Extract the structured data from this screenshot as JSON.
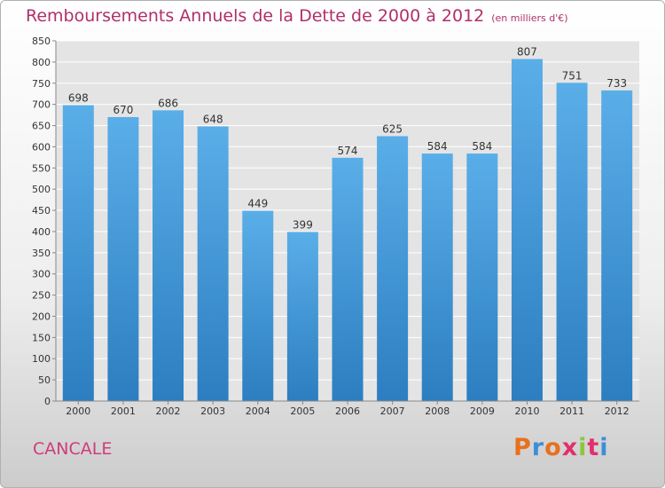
{
  "chart_data": {
    "type": "bar",
    "title": "Remboursements Annuels de la Dette de 2000 à 2012",
    "subtitle": "(en milliers d'€)",
    "categories": [
      "2000",
      "2001",
      "2002",
      "2003",
      "2004",
      "2005",
      "2006",
      "2007",
      "2008",
      "2009",
      "2010",
      "2011",
      "2012"
    ],
    "values": [
      698,
      670,
      686,
      648,
      449,
      399,
      574,
      625,
      584,
      584,
      807,
      751,
      733
    ],
    "ylim": [
      0,
      850
    ],
    "yticks": [
      0,
      50,
      100,
      150,
      200,
      250,
      300,
      350,
      400,
      450,
      500,
      550,
      600,
      650,
      700,
      750,
      800,
      850
    ],
    "grid": true,
    "bar_color_top": "#5aaee8",
    "bar_color_bottom": "#2c7ec0"
  },
  "footer": {
    "city": "CANCALE",
    "logo_text": "Proxiti",
    "logo_colors": [
      "#e8701e",
      "#3c8fd6",
      "#e8701e",
      "#e03070",
      "#8cc63f",
      "#e03070",
      "#3c8fd6"
    ]
  },
  "colors": {
    "title": "#b0306a",
    "city": "#d03c78",
    "grid": "#ffffff",
    "plot_background": "#e4e4e4"
  }
}
